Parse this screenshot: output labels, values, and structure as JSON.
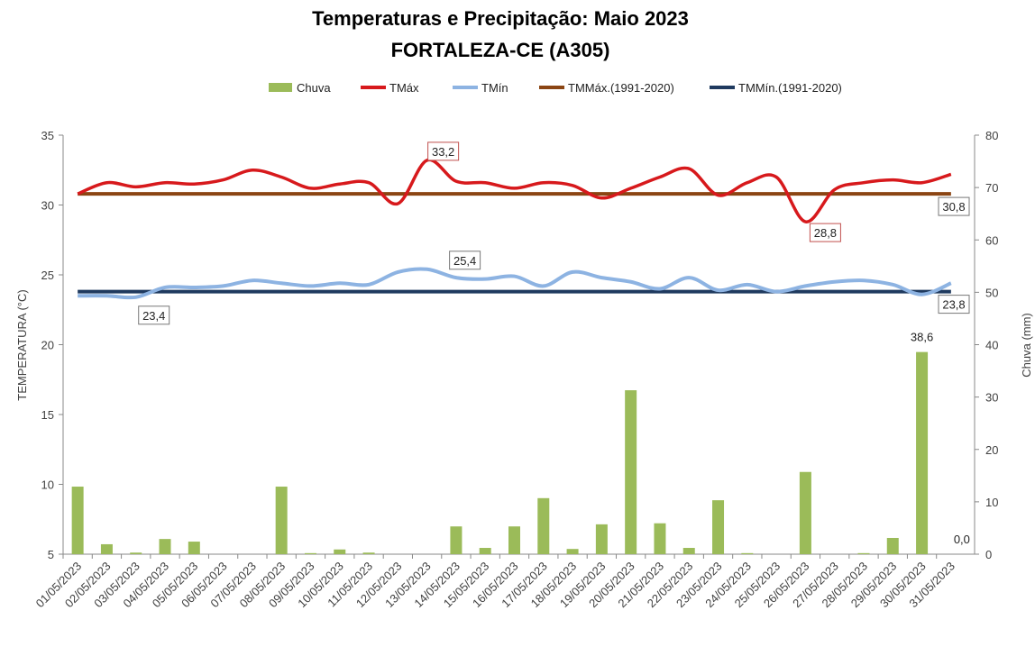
{
  "chart_data": {
    "type": "bar+line",
    "title": "Temperaturas e Precipitação: Maio 2023",
    "subtitle": "FORTALEZA-CE (A305)",
    "ylabel": "TEMPERATURA (°C)",
    "y2label": "Chuva (mm)",
    "ylim": [
      5,
      35
    ],
    "y2lim": [
      0,
      80
    ],
    "yticks": [
      "5",
      "10",
      "15",
      "20",
      "25",
      "30",
      "35"
    ],
    "y2ticks": [
      "0",
      "10",
      "20",
      "30",
      "40",
      "50",
      "60",
      "70",
      "80"
    ],
    "grid": false,
    "legend_position": "top",
    "categories": [
      "01/05/2023",
      "02/05/2023",
      "03/05/2023",
      "04/05/2023",
      "05/05/2023",
      "06/05/2023",
      "07/05/2023",
      "08/05/2023",
      "09/05/2023",
      "10/05/2023",
      "11/05/2023",
      "12/05/2023",
      "13/05/2023",
      "14/05/2023",
      "15/05/2023",
      "16/05/2023",
      "17/05/2023",
      "18/05/2023",
      "19/05/2023",
      "20/05/2023",
      "21/05/2023",
      "22/05/2023",
      "23/05/2023",
      "24/05/2023",
      "25/05/2023",
      "26/05/2023",
      "27/05/2023",
      "28/05/2023",
      "29/05/2023",
      "30/05/2023",
      "31/05/2023"
    ],
    "series": [
      {
        "name": "Chuva",
        "type": "bar",
        "axis": "right",
        "color": "#9bbb59",
        "values": [
          12.9,
          1.9,
          0.3,
          2.9,
          2.4,
          0,
          0,
          12.9,
          0.2,
          0.9,
          0.3,
          0,
          0,
          5.3,
          1.2,
          5.3,
          10.7,
          1.0,
          5.7,
          31.3,
          5.9,
          1.2,
          10.3,
          0.2,
          0,
          15.7,
          0,
          0.2,
          3.1,
          38.6,
          0.0
        ]
      },
      {
        "name": "TMáx",
        "type": "line",
        "axis": "left",
        "color": "#d7191c",
        "values": [
          30.8,
          31.6,
          31.3,
          31.6,
          31.5,
          31.8,
          32.5,
          32.0,
          31.2,
          31.5,
          31.6,
          30.1,
          33.2,
          31.7,
          31.6,
          31.2,
          31.6,
          31.4,
          30.5,
          31.2,
          32.0,
          32.6,
          30.7,
          31.6,
          32.0,
          28.8,
          31.1,
          31.6,
          31.8,
          31.6,
          32.2
        ]
      },
      {
        "name": "TMín",
        "type": "line",
        "axis": "left",
        "color": "#8db3e2",
        "values": [
          23.5,
          23.5,
          23.4,
          24.1,
          24.1,
          24.2,
          24.6,
          24.4,
          24.2,
          24.4,
          24.3,
          25.2,
          25.4,
          24.8,
          24.7,
          24.9,
          24.2,
          25.2,
          24.8,
          24.5,
          24.0,
          24.8,
          23.9,
          24.3,
          23.8,
          24.2,
          24.5,
          24.6,
          24.3,
          23.6,
          24.4
        ]
      },
      {
        "name": "TMMáx.(1991-2020)",
        "type": "line",
        "axis": "left",
        "color": "#8b4513",
        "value": 30.8
      },
      {
        "name": "TMMín.(1991-2020)",
        "type": "line",
        "axis": "left",
        "color": "#1f3a5f",
        "value": 23.8
      }
    ],
    "annotations": [
      {
        "series": "TMáx",
        "index": 12,
        "text": "33,2"
      },
      {
        "series": "TMáx",
        "index": 25,
        "text": "28,8"
      },
      {
        "series": "TMín",
        "index": 2,
        "text": "23,4"
      },
      {
        "series": "TMín",
        "index": 12,
        "text": "25,4"
      },
      {
        "series": "TMMáx.(1991-2020)",
        "index": 30,
        "text": "30,8"
      },
      {
        "series": "TMMín.(1991-2020)",
        "index": 30,
        "text": "23,8"
      },
      {
        "series": "Chuva",
        "index": 29,
        "text": "38,6"
      },
      {
        "series": "Chuva",
        "index": 30,
        "text": "0,0"
      }
    ]
  }
}
